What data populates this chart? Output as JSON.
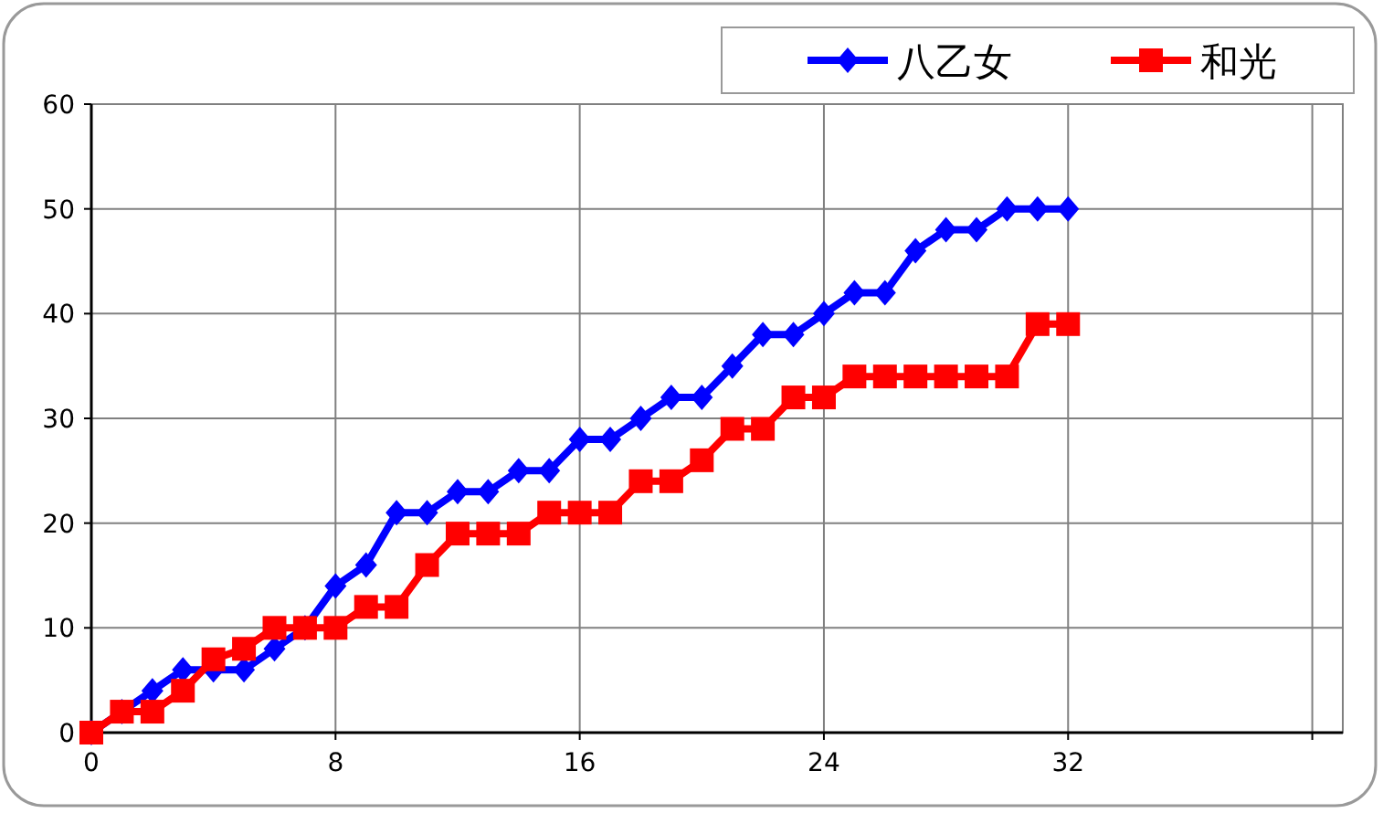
{
  "chart_data": {
    "type": "line",
    "x": [
      0,
      1,
      2,
      3,
      4,
      5,
      6,
      7,
      8,
      9,
      10,
      11,
      12,
      13,
      14,
      15,
      16,
      17,
      18,
      19,
      20,
      21,
      22,
      23,
      24,
      25,
      26,
      27,
      28,
      29,
      30,
      31,
      32
    ],
    "series": [
      {
        "name": "八乙女",
        "color": "#0000ff",
        "marker": "diamond",
        "values": [
          0,
          2,
          4,
          6,
          6,
          6,
          8,
          10,
          14,
          16,
          21,
          21,
          23,
          23,
          25,
          25,
          28,
          28,
          30,
          32,
          32,
          35,
          38,
          38,
          40,
          42,
          42,
          46,
          48,
          48,
          50,
          50,
          50
        ]
      },
      {
        "name": "和光",
        "color": "#ff0000",
        "marker": "square",
        "values": [
          0,
          2,
          2,
          4,
          7,
          8,
          10,
          10,
          10,
          12,
          12,
          16,
          19,
          19,
          19,
          21,
          21,
          21,
          24,
          24,
          26,
          29,
          29,
          32,
          32,
          34,
          34,
          34,
          34,
          34,
          34,
          39,
          39
        ]
      }
    ],
    "xlim": [
      0,
      41
    ],
    "xticks": [
      0,
      8,
      16,
      24,
      32,
      {
        "value": 40,
        "label": null
      }
    ],
    "ylim": [
      0,
      60
    ],
    "yticks": [
      0,
      10,
      20,
      30,
      40,
      50,
      60
    ],
    "grid": true,
    "legend": "top right",
    "line_style": "solid"
  }
}
